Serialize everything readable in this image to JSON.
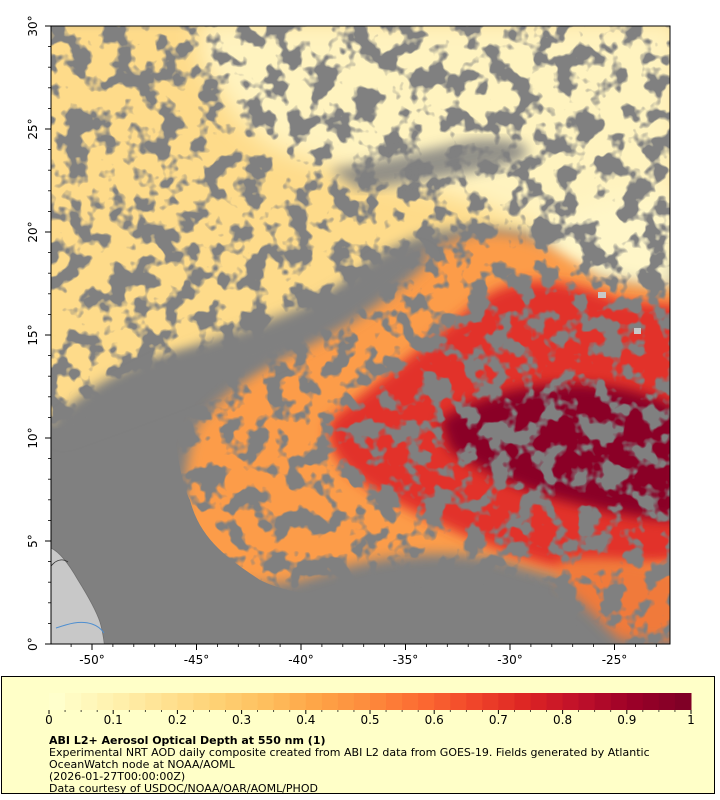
{
  "map": {
    "lon_ticks": [
      "-50°",
      "-45°",
      "-40°",
      "-35°",
      "-30°",
      "-25°"
    ],
    "lat_ticks": [
      "0°",
      "5°",
      "10°",
      "15°",
      "20°",
      "25°",
      "30°"
    ],
    "colors": {
      "land_mask": "#808080",
      "continent": "#c8c8c8",
      "river": "#4f8fd0",
      "low_aod": "#fff4bf",
      "high_aod": "#7a001e"
    }
  },
  "colorbar": {
    "tick_labels": [
      "0",
      "0.1",
      "0.2",
      "0.3",
      "0.4",
      "0.5",
      "0.6",
      "0.7",
      "0.8",
      "0.9",
      "1"
    ],
    "colors": [
      "#ffffcc",
      "#fff2b0",
      "#ffe394",
      "#fed276",
      "#febf5e",
      "#fea446",
      "#fd8a3c",
      "#fc6a32",
      "#f0452a",
      "#dc2424",
      "#c0102a",
      "#9c0028",
      "#800026"
    ]
  },
  "legend": {
    "title": "ABI L2+ Aerosol Optical Depth at 550 nm (1)",
    "line1": "Experimental NRT AOD daily composite created from ABI L2 data from GOES-19. Fields generated by Atlantic",
    "line2": "OceanWatch node at NOAA/AOML",
    "line3": "(2026-01-27T00:00:00Z)",
    "line4": "Data courtesy of USDOC/NOAA/OAR/AOML/PHOD"
  }
}
